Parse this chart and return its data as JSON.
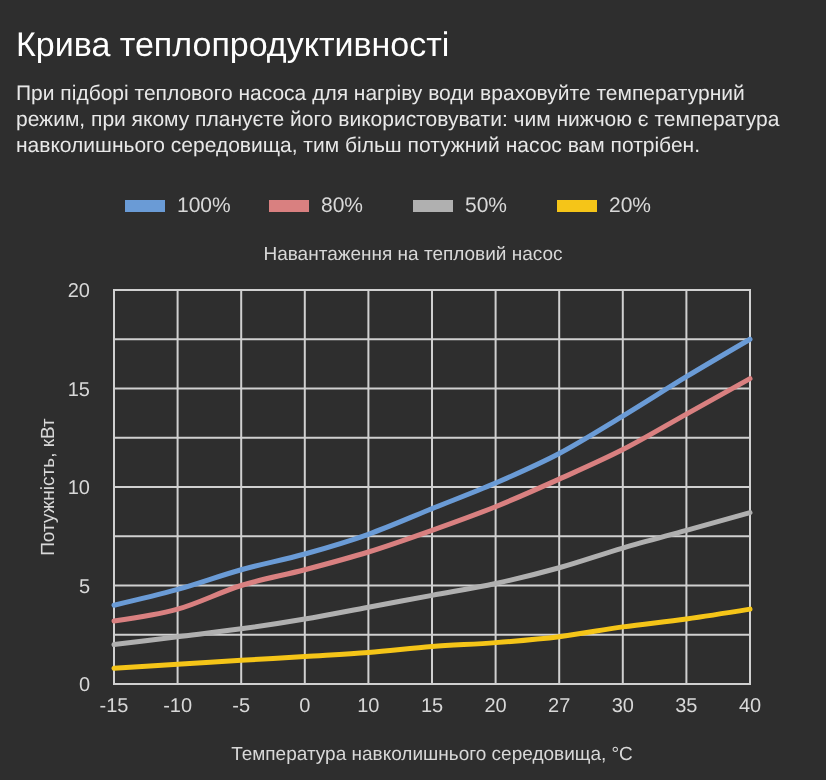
{
  "chart_data": {
    "type": "line",
    "title": "Крива теплопродуктивності",
    "subtitle": "При підборі теплового насоса для нагріву води враховуйте температурний режим, при якому плануєте його використовувати: чим нижчою є температура навколишнього середовища, тим більш потужний насос вам потрібен.",
    "legend_title": "Навантаження на тепловий насос",
    "xlabel": "Температура навколишнього середовища, °C",
    "ylabel": "Потужність, кВт",
    "categories": [
      "-15",
      "-10",
      "-5",
      "0",
      "10",
      "15",
      "20",
      "27",
      "30",
      "35",
      "40"
    ],
    "series": [
      {
        "name": "100%",
        "color": "#6a9bd6",
        "values": [
          4.0,
          4.8,
          5.8,
          6.6,
          7.6,
          8.9,
          10.2,
          11.7,
          13.6,
          15.6,
          17.5
        ]
      },
      {
        "name": "80%",
        "color": "#d98080",
        "values": [
          3.2,
          3.8,
          5.0,
          5.8,
          6.7,
          7.8,
          9.0,
          10.4,
          11.9,
          13.7,
          15.5
        ]
      },
      {
        "name": "50%",
        "color": "#b0b0b0",
        "values": [
          2.0,
          2.4,
          2.8,
          3.3,
          3.9,
          4.5,
          5.1,
          5.9,
          6.9,
          7.8,
          8.7
        ]
      },
      {
        "name": "20%",
        "color": "#f5c518",
        "values": [
          0.8,
          1.0,
          1.2,
          1.4,
          1.6,
          1.9,
          2.1,
          2.4,
          2.9,
          3.3,
          3.8
        ]
      }
    ],
    "ylim": [
      0,
      20
    ],
    "yticks": [
      0,
      {
        "value": 2.5,
        "label": null
      },
      5,
      {
        "value": 7.5,
        "label": null
      },
      10,
      {
        "value": 12.5,
        "label": null
      },
      15,
      {
        "value": 17.5,
        "label": null
      },
      20
    ],
    "grid": true,
    "legend": "top",
    "marker": "none",
    "line_style": "solid"
  }
}
